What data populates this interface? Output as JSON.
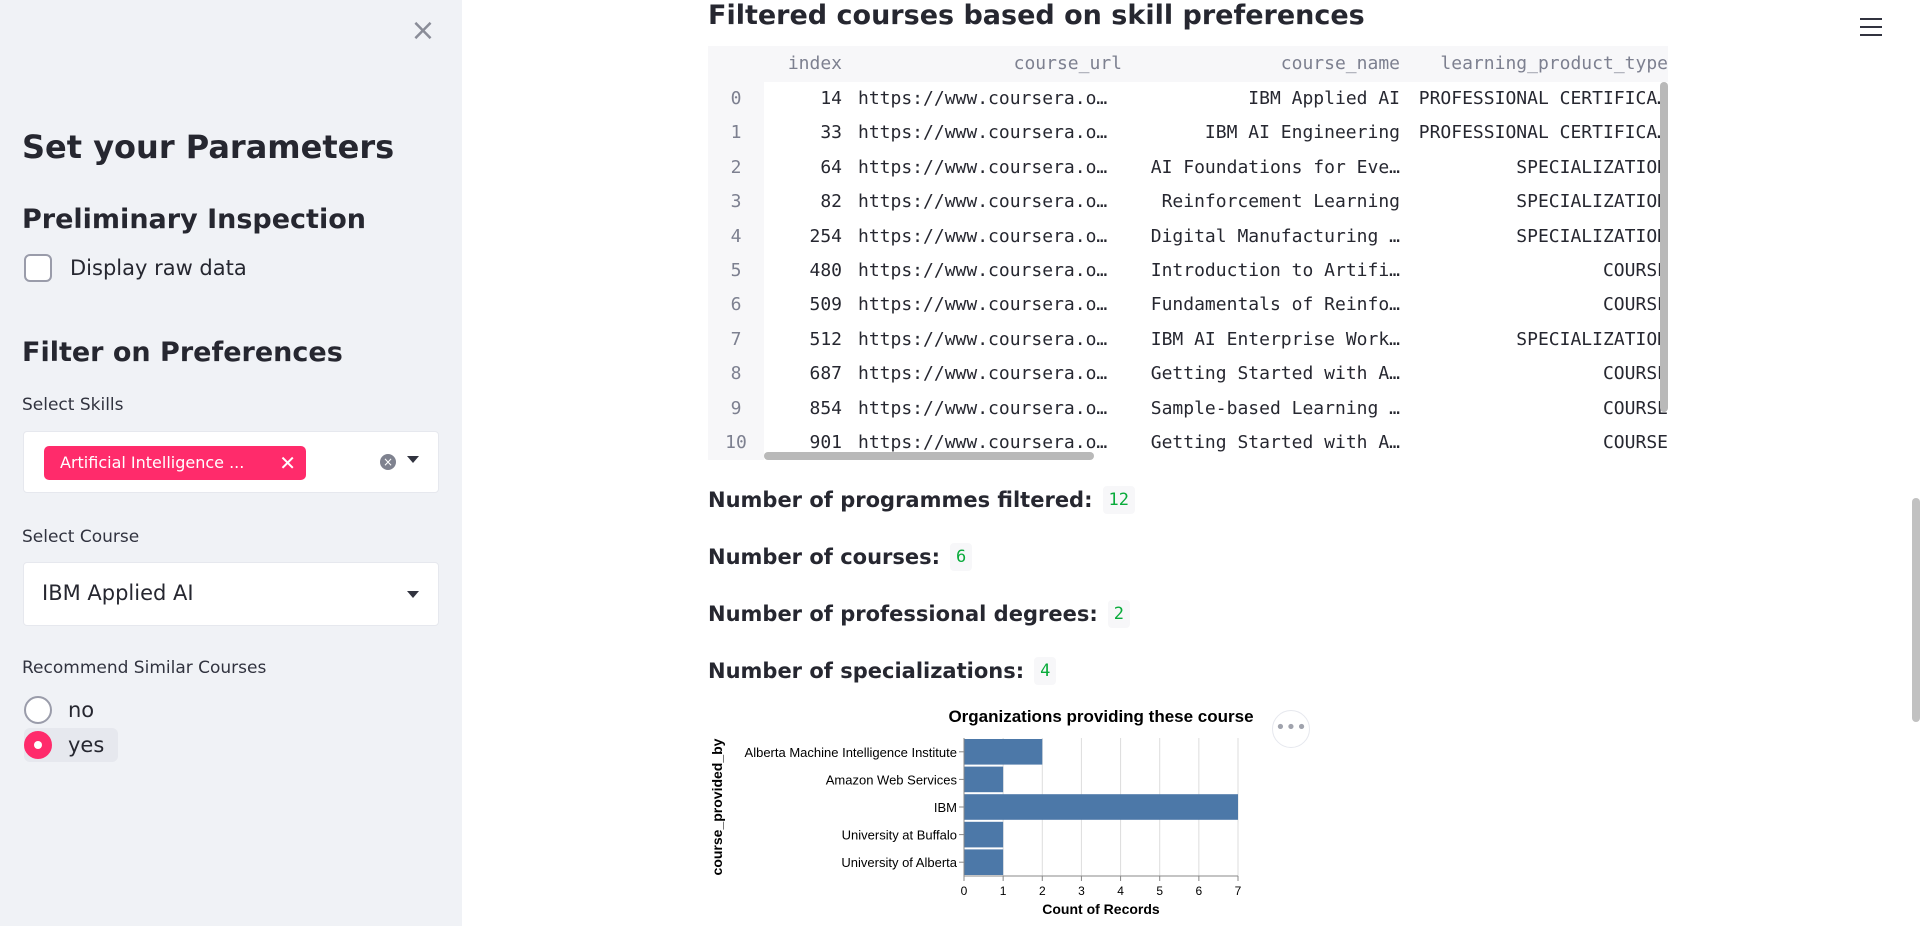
{
  "sidebar": {
    "title": "Set your Parameters",
    "preliminary_heading": "Preliminary Inspection",
    "raw_data_checkbox_label": "Display raw data",
    "filter_heading": "Filter on Preferences",
    "skills_label": "Select Skills",
    "skills_selected_tag": "Artificial Intelligence ...",
    "course_label": "Select Course",
    "course_value": "IBM Applied AI",
    "recommend_label": "Recommend Similar Courses",
    "recommend_options": [
      "no",
      "yes"
    ],
    "recommend_selected": "yes"
  },
  "main": {
    "table_title": "Filtered courses based on skill preferences",
    "table": {
      "headers": [
        "index",
        "course_url",
        "course_name",
        "learning_product_type"
      ],
      "rows": [
        {
          "row": "0",
          "index": "14",
          "url": "https://www.coursera.o…",
          "name": "IBM Applied AI",
          "type": "PROFESSIONAL CERTIFICA…"
        },
        {
          "row": "1",
          "index": "33",
          "url": "https://www.coursera.o…",
          "name": "IBM AI Engineering",
          "type": "PROFESSIONAL CERTIFICA…"
        },
        {
          "row": "2",
          "index": "64",
          "url": "https://www.coursera.o…",
          "name": "AI Foundations for Eve…",
          "type": "SPECIALIZATION"
        },
        {
          "row": "3",
          "index": "82",
          "url": "https://www.coursera.o…",
          "name": "Reinforcement Learning",
          "type": "SPECIALIZATION"
        },
        {
          "row": "4",
          "index": "254",
          "url": "https://www.coursera.o…",
          "name": "Digital Manufacturing …",
          "type": "SPECIALIZATION"
        },
        {
          "row": "5",
          "index": "480",
          "url": "https://www.coursera.o…",
          "name": "Introduction to Artifi…",
          "type": "COURSE"
        },
        {
          "row": "6",
          "index": "509",
          "url": "https://www.coursera.o…",
          "name": "Fundamentals of Reinfo…",
          "type": "COURSE"
        },
        {
          "row": "7",
          "index": "512",
          "url": "https://www.coursera.o…",
          "name": "IBM AI Enterprise Work…",
          "type": "SPECIALIZATION"
        },
        {
          "row": "8",
          "index": "687",
          "url": "https://www.coursera.o…",
          "name": "Getting Started with A…",
          "type": "COURSE"
        },
        {
          "row": "9",
          "index": "854",
          "url": "https://www.coursera.o…",
          "name": "Sample-based Learning …",
          "type": "COURSE"
        },
        {
          "row": "10",
          "index": "901",
          "url": "https://www.coursera.o…",
          "name": "Getting Started with A…",
          "type": "COURSE"
        }
      ]
    },
    "metrics": [
      {
        "label": "Number of programmes filtered:",
        "value": "12"
      },
      {
        "label": "Number of courses:",
        "value": "6"
      },
      {
        "label": "Number of professional degrees:",
        "value": "2"
      },
      {
        "label": "Number of specializations:",
        "value": "4"
      }
    ]
  },
  "chart_data": {
    "type": "bar",
    "orientation": "horizontal",
    "title": "Organizations providing these course",
    "xlabel": "Count of Records",
    "ylabel": "course_provided_by",
    "categories": [
      "Alberta Machine Intelligence Institute",
      "Amazon Web Services",
      "IBM",
      "University at Buffalo",
      "University of Alberta"
    ],
    "values": [
      2,
      1,
      7,
      1,
      1
    ],
    "xlim": [
      0,
      7
    ],
    "xticks": [
      0,
      1,
      2,
      3,
      4,
      5,
      6,
      7
    ],
    "grid": true,
    "bar_color": "#4c78a8"
  },
  "colors": {
    "accent": "#ff2b6b",
    "sidebar_bg": "#f0f2f6",
    "metric_value": "#09ab3b"
  }
}
